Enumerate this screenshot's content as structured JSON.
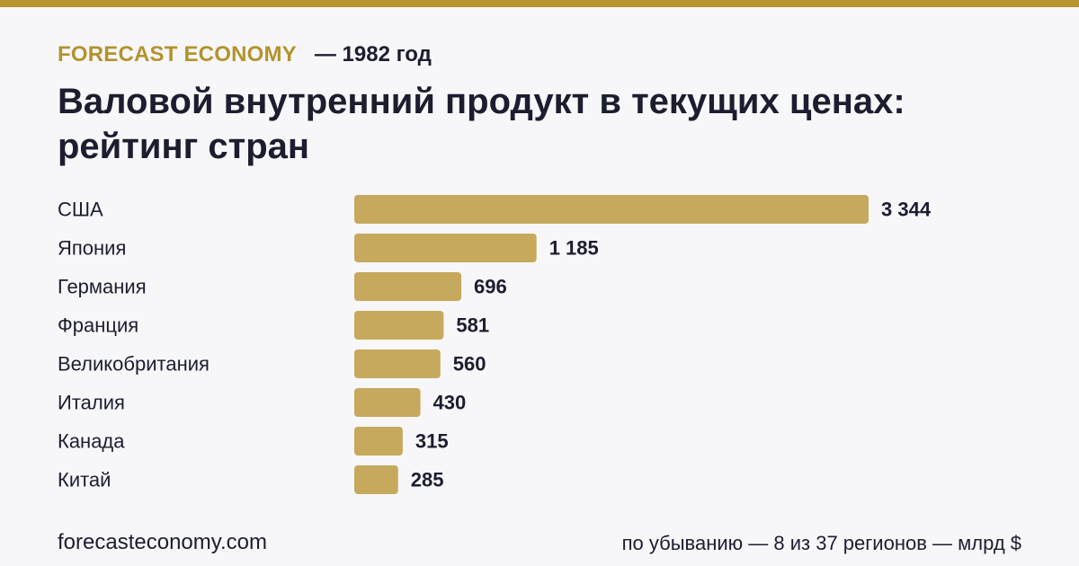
{
  "header": {
    "brand": "FORECAST ECONOMY",
    "year_label": "— 1982 год"
  },
  "title": "Валовой внутренний продукт в текущих ценах: рейтинг стран",
  "footer": {
    "site": "forecasteconomy.com",
    "note": "по убыванию — 8 из 37 регионов — млрд $"
  },
  "colors": {
    "accent": "#b9962f",
    "bar": "#c6a95c",
    "text": "#1c1d2e",
    "background": "#f7f7fa"
  },
  "chart_data": {
    "type": "bar",
    "orientation": "horizontal",
    "categories": [
      "США",
      "Япония",
      "Германия",
      "Франция",
      "Великобритания",
      "Италия",
      "Канада",
      "Китай"
    ],
    "values": [
      3344,
      1185,
      696,
      581,
      560,
      430,
      315,
      285
    ],
    "value_labels": [
      "3 344",
      "1 185",
      "696",
      "581",
      "560",
      "430",
      "315",
      "285"
    ],
    "title": "Валовой внутренний продукт в текущих ценах: рейтинг стран",
    "unit": "млрд $",
    "grid": false,
    "legend": "none"
  }
}
